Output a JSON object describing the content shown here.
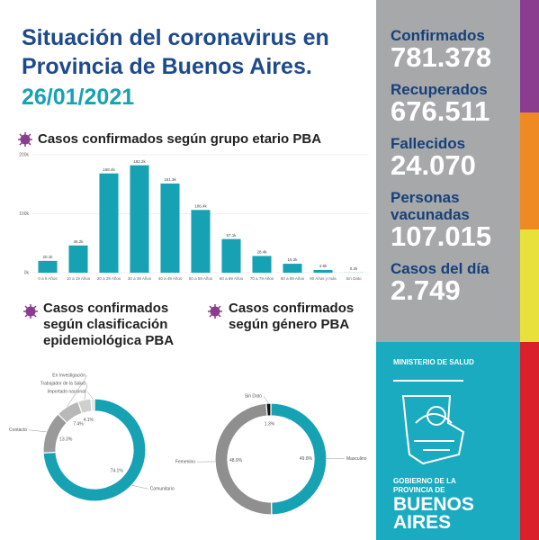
{
  "header": {
    "title_line1": "Situación del coronavirus en",
    "title_line2": "Provincia de Buenos Aires.",
    "date": "26/01/2021"
  },
  "stats": [
    {
      "label": "Confirmados",
      "value": "781.378"
    },
    {
      "label": "Recuperados",
      "value": "676.511"
    },
    {
      "label": "Fallecidos",
      "value": "24.070"
    },
    {
      "label": "Personas vacunadas",
      "value": "107.015"
    },
    {
      "label": "Casos del día",
      "value": "2.749"
    }
  ],
  "chart_data": [
    {
      "type": "bar",
      "title": "Casos confirmados según grupo etario PBA",
      "categories": [
        "0 a 9 Años",
        "10 a 19 Años",
        "20 a 29 Años",
        "30 a 39 Años",
        "40 a 49 Años",
        "50 a 59 Años",
        "60 a 69 Años",
        "70 a 79 Años",
        "80 a 89 Años",
        "90 Años y más",
        "Sin Dato"
      ],
      "values": [
        20.1,
        46.2,
        168.4,
        182.2,
        151.3,
        106.4,
        57.1,
        28.4,
        15.2,
        4.6,
        0.2
      ],
      "value_labels": [
        "20.1k",
        "46.2k",
        "168.4k",
        "182.2k",
        "151.3k",
        "106.4k",
        "57.1k",
        "28.4k",
        "15.2k",
        "4.6k",
        "0.2k"
      ],
      "color": "#17a2b4",
      "ylim": [
        0,
        200
      ],
      "yticks": [
        {
          "value": 0,
          "label": "0k"
        },
        {
          "value": 100,
          "label": "100k"
        },
        {
          "value": 200,
          "label": "200k"
        }
      ],
      "grid": true
    },
    {
      "type": "donut",
      "title": "Casos confirmados según clasificación epidemiológica PBA",
      "categories": [
        "Comunitario",
        "Contacto",
        "En Investigación",
        "Trabajador de la Salud",
        "Importado nacional"
      ],
      "values": [
        74.1,
        13.3,
        7.4,
        4.1,
        1.1
      ],
      "value_labels": [
        "74.1%",
        "13.3%",
        "7.4%",
        "4.1%",
        null
      ],
      "colors": [
        "#17a2b4",
        "#9a9a9a",
        "#b8b8b8",
        "#cfcfcf",
        "#e3e3e3"
      ]
    },
    {
      "type": "donut",
      "title": "Casos confirmados según género PBA",
      "categories": [
        "Masculino",
        "Femenino",
        "Sin Dato"
      ],
      "values": [
        49.8,
        48.9,
        1.3
      ],
      "value_labels": [
        "49.8%",
        "48.9%",
        "1.3%"
      ],
      "colors": [
        "#17a2b4",
        "#8f8f8f",
        "#111111"
      ]
    }
  ],
  "footer": {
    "ministry": "MINISTERIO DE SALUD",
    "government": "GOBIERNO DE LA PROVINCIA DE",
    "province": "BUENOS AIRES"
  }
}
